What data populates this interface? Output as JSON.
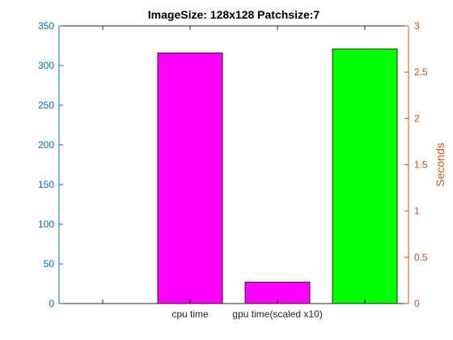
{
  "chart_data": {
    "type": "bar",
    "title": "ImageSize: 128x128 Patchsize:7",
    "categories": [
      "",
      "cpu time",
      "gpu time(scaled x10)",
      ""
    ],
    "bars": [
      {
        "label": "cpu time",
        "axis": "left",
        "value": 316,
        "color": "#ff00ff"
      },
      {
        "label": "gpu time(scaled x10)",
        "axis": "left",
        "value": 27,
        "color": "#ff00ff"
      },
      {
        "label": "",
        "axis": "right",
        "value": 2.75,
        "color": "#00ff00"
      }
    ],
    "left_axis": {
      "label": "",
      "ylim": [
        0,
        350
      ],
      "ticks": [
        "0",
        "50",
        "100",
        "150",
        "200",
        "250",
        "300",
        "350"
      ],
      "color": "#0072bd"
    },
    "right_axis": {
      "label": "Seconds",
      "ylim": [
        0,
        3
      ],
      "ticks": [
        "0",
        "0.5",
        "1",
        "1.5",
        "2",
        "2.5",
        "3"
      ],
      "color": "#d95319"
    },
    "grid": false,
    "legend": "none"
  }
}
